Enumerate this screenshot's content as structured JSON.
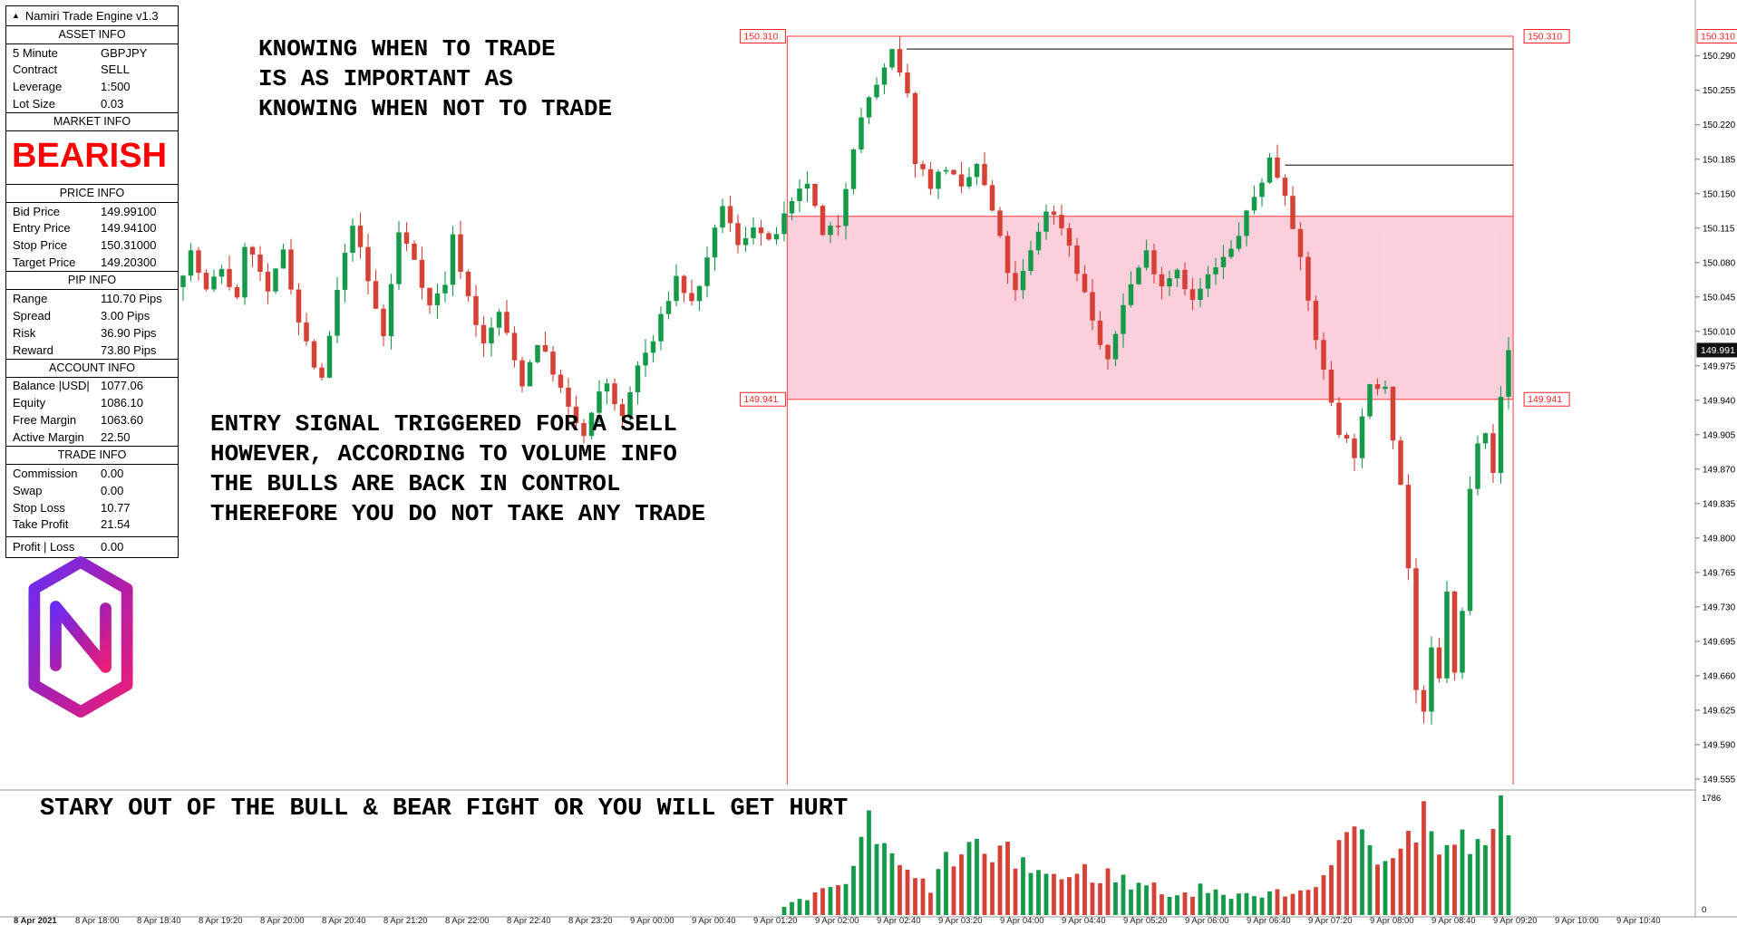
{
  "app": {
    "title": "Namiri Trade Engine v1.3"
  },
  "panel": {
    "sections": [
      {
        "title": "ASSET INFO",
        "rows": [
          [
            "5 Minute",
            "GBPJPY"
          ],
          [
            "Contract",
            "SELL"
          ],
          [
            "Leverage",
            "1:500"
          ],
          [
            "Lot Size",
            "0.03"
          ]
        ]
      },
      {
        "title": "MARKET INFO",
        "highlight": "BEARISH"
      },
      {
        "title": "PRICE INFO",
        "rows": [
          [
            "Bid Price",
            "149.99100"
          ],
          [
            "Entry Price",
            "149.94100"
          ],
          [
            "Stop Price",
            "150.31000"
          ],
          [
            "Target Price",
            "149.20300"
          ]
        ]
      },
      {
        "title": "PIP INFO",
        "rows": [
          [
            "Range",
            "110.70 Pips"
          ],
          [
            "Spread",
            "3.00 Pips"
          ],
          [
            "Risk",
            "36.90 Pips"
          ],
          [
            "Reward",
            "73.80 Pips"
          ]
        ]
      },
      {
        "title": "ACCOUNT INFO",
        "rows": [
          [
            "Balance |USD|",
            "1077.06"
          ],
          [
            "Equity",
            "1086.10"
          ],
          [
            "Free Margin",
            "1063.60"
          ],
          [
            "Active Margin",
            "22.50"
          ]
        ]
      },
      {
        "title": "TRADE INFO",
        "rows": [
          [
            "Commission",
            "0.00"
          ],
          [
            "Swap",
            "0.00"
          ],
          [
            "Stop Loss",
            "10.77"
          ],
          [
            "Take Profit",
            "21.54"
          ]
        ],
        "footer": [
          "Profit | Loss",
          "0.00"
        ]
      }
    ]
  },
  "annotations": {
    "top": "KNOWING WHEN TO TRADE\nIS AS IMPORTANT AS\nKNOWING WHEN NOT TO TRADE",
    "middle": "ENTRY SIGNAL TRIGGERED FOR A SELL\nHOWEVER, ACCORDING TO VOLUME INFO\nTHE BULLS ARE BACK IN CONTROL\nTHEREFORE YOU DO NOT TAKE ANY TRADE",
    "bottom": "STARY OUT OF THE BULL & BEAR FIGHT OR YOU WILL GET HURT"
  },
  "chart_data": {
    "type": "candlestick",
    "symbol": "GBPJPY",
    "timeframe": "5 Minute",
    "seed": 7,
    "y_axis": {
      "top_price": 150.31,
      "bottom_price": 149.555,
      "labels": [
        "150.290",
        "150.255",
        "150.220",
        "150.185",
        "150.150",
        "150.115",
        "150.080",
        "150.045",
        "150.010",
        "149.975",
        "149.940",
        "149.905",
        "149.870",
        "149.835",
        "149.800",
        "149.765",
        "149.730",
        "149.695",
        "149.660",
        "149.625",
        "149.590",
        "149.555"
      ]
    },
    "current_price": "149.991",
    "stop_price_label": "150.310",
    "entry_price_label": "149.941",
    "zone": {
      "price_top": 150.127,
      "price_bottom": 149.941
    },
    "stop_line_price": 150.31,
    "vline_indices": [
      78.4,
      172.6
    ],
    "ref_lines": [
      {
        "price": 150.297,
        "from_index": 93.9,
        "to_index": 172.6
      },
      {
        "price": 150.179,
        "from_index": 143.0,
        "to_index": 172.6
      }
    ],
    "price_path": [
      [
        0,
        150.055
      ],
      [
        2,
        150.09
      ],
      [
        4,
        150.05
      ],
      [
        6,
        150.075
      ],
      [
        8,
        150.04
      ],
      [
        9,
        150.1
      ],
      [
        11,
        150.07
      ],
      [
        12,
        150.045
      ],
      [
        14,
        150.095
      ],
      [
        16,
        150.02
      ],
      [
        18,
        149.975
      ],
      [
        19,
        149.958
      ],
      [
        21,
        150.05
      ],
      [
        23,
        150.122
      ],
      [
        25,
        150.06
      ],
      [
        27,
        150.005
      ],
      [
        29,
        150.11
      ],
      [
        31,
        150.085
      ],
      [
        33,
        150.035
      ],
      [
        35,
        150.06
      ],
      [
        36,
        150.105
      ],
      [
        38,
        150.045
      ],
      [
        40,
        149.995
      ],
      [
        42,
        150.03
      ],
      [
        44,
        149.98
      ],
      [
        45,
        149.958
      ],
      [
        47,
        150.0
      ],
      [
        49,
        149.97
      ],
      [
        51,
        149.93
      ],
      [
        53,
        149.903
      ],
      [
        55,
        149.945
      ],
      [
        56,
        149.958
      ],
      [
        58,
        149.92
      ],
      [
        60,
        149.975
      ],
      [
        62,
        150.0
      ],
      [
        64,
        150.045
      ],
      [
        65,
        150.065
      ],
      [
        67,
        150.038
      ],
      [
        69,
        150.08
      ],
      [
        71,
        150.14
      ],
      [
        73,
        150.095
      ],
      [
        75,
        150.12
      ],
      [
        77,
        150.098
      ],
      [
        79,
        150.125
      ],
      [
        81,
        150.15
      ],
      [
        82,
        150.162
      ],
      [
        84,
        150.105
      ],
      [
        86,
        150.12
      ],
      [
        88,
        150.2
      ],
      [
        90,
        150.248
      ],
      [
        92,
        150.275
      ],
      [
        93,
        150.293
      ],
      [
        95,
        150.248
      ],
      [
        96,
        150.185
      ],
      [
        98,
        150.16
      ],
      [
        100,
        150.178
      ],
      [
        102,
        150.152
      ],
      [
        104,
        150.18
      ],
      [
        106,
        150.132
      ],
      [
        108,
        150.072
      ],
      [
        109,
        150.048
      ],
      [
        111,
        150.09
      ],
      [
        113,
        150.135
      ],
      [
        115,
        150.118
      ],
      [
        116,
        150.098
      ],
      [
        118,
        150.048
      ],
      [
        120,
        149.996
      ],
      [
        121,
        149.976
      ],
      [
        123,
        150.04
      ],
      [
        125,
        150.075
      ],
      [
        126,
        150.09
      ],
      [
        128,
        150.058
      ],
      [
        130,
        150.075
      ],
      [
        132,
        150.04
      ],
      [
        134,
        150.065
      ],
      [
        137,
        150.092
      ],
      [
        139,
        150.128
      ],
      [
        141,
        150.165
      ],
      [
        142,
        150.185
      ],
      [
        144,
        150.152
      ],
      [
        145,
        150.12
      ],
      [
        147,
        150.04
      ],
      [
        149,
        149.968
      ],
      [
        151,
        149.91
      ],
      [
        153,
        149.886
      ],
      [
        155,
        149.952
      ],
      [
        157,
        149.958
      ],
      [
        158,
        149.905
      ],
      [
        159,
        149.855
      ],
      [
        160,
        149.77
      ],
      [
        161,
        149.645
      ],
      [
        162,
        149.618
      ],
      [
        163,
        149.685
      ],
      [
        164,
        149.655
      ],
      [
        165,
        149.748
      ],
      [
        166,
        149.66
      ],
      [
        167,
        149.725
      ],
      [
        168,
        149.848
      ],
      [
        169,
        149.902
      ],
      [
        170,
        149.912
      ],
      [
        171,
        149.87
      ],
      [
        172,
        149.94
      ],
      [
        173,
        149.991
      ]
    ],
    "volume_max": 1786,
    "volume_axis_labels": {
      "max": "1786",
      "min": "0"
    },
    "volume_path": [
      [
        0,
        0
      ],
      [
        77,
        0
      ],
      [
        78,
        120
      ],
      [
        80,
        200
      ],
      [
        82,
        280
      ],
      [
        84,
        420
      ],
      [
        86,
        520
      ],
      [
        88,
        950
      ],
      [
        89,
        1400
      ],
      [
        90,
        1150
      ],
      [
        91,
        950
      ],
      [
        92,
        820
      ],
      [
        93,
        700
      ],
      [
        95,
        520
      ],
      [
        97,
        420
      ],
      [
        99,
        780
      ],
      [
        101,
        950
      ],
      [
        103,
        1000
      ],
      [
        105,
        820
      ],
      [
        107,
        880
      ],
      [
        109,
        800
      ],
      [
        111,
        650
      ],
      [
        113,
        600
      ],
      [
        115,
        520
      ],
      [
        117,
        650
      ],
      [
        119,
        560
      ],
      [
        121,
        620
      ],
      [
        123,
        420
      ],
      [
        125,
        480
      ],
      [
        127,
        360
      ],
      [
        129,
        300
      ],
      [
        131,
        340
      ],
      [
        133,
        420
      ],
      [
        135,
        300
      ],
      [
        137,
        280
      ],
      [
        139,
        260
      ],
      [
        141,
        420
      ],
      [
        143,
        320
      ],
      [
        145,
        380
      ],
      [
        147,
        520
      ],
      [
        149,
        680
      ],
      [
        151,
        1150
      ],
      [
        153,
        1300
      ],
      [
        155,
        950
      ],
      [
        157,
        820
      ],
      [
        159,
        1050
      ],
      [
        161,
        1700
      ],
      [
        163,
        1150
      ],
      [
        165,
        950
      ],
      [
        167,
        1150
      ],
      [
        169,
        850
      ],
      [
        171,
        1786
      ],
      [
        172,
        1000
      ],
      [
        173,
        820
      ]
    ],
    "time_labels": [
      "8 Apr 2021",
      "8 Apr 18:00",
      "8 Apr 18:40",
      "8 Apr 19:20",
      "8 Apr 20:00",
      "8 Apr 20:40",
      "8 Apr 21:20",
      "8 Apr 22:00",
      "8 Apr 22:40",
      "8 Apr 23:20",
      "9 Apr 00:00",
      "9 Apr 00:40",
      "9 Apr 01:20",
      "9 Apr 02:00",
      "9 Apr 02:40",
      "9 Apr 03:20",
      "9 Apr 04:00",
      "9 Apr 04:40",
      "9 Apr 05:20",
      "9 Apr 06:00",
      "9 Apr 06:40",
      "9 Apr 07:20",
      "9 Apr 08:00",
      "9 Apr 08:40",
      "9 Apr 09:20",
      "9 Apr 10:00",
      "9 Apr 10:40"
    ],
    "colors": {
      "up": "#159a4a",
      "down": "#d64136",
      "red_line": "#ff5a5a",
      "label_red": "#ff2020",
      "zone_fill": "#f8a0b8",
      "ref_line": "#333333",
      "axis_line": "#9a9a9a",
      "current_box_bg": "#111111"
    }
  }
}
